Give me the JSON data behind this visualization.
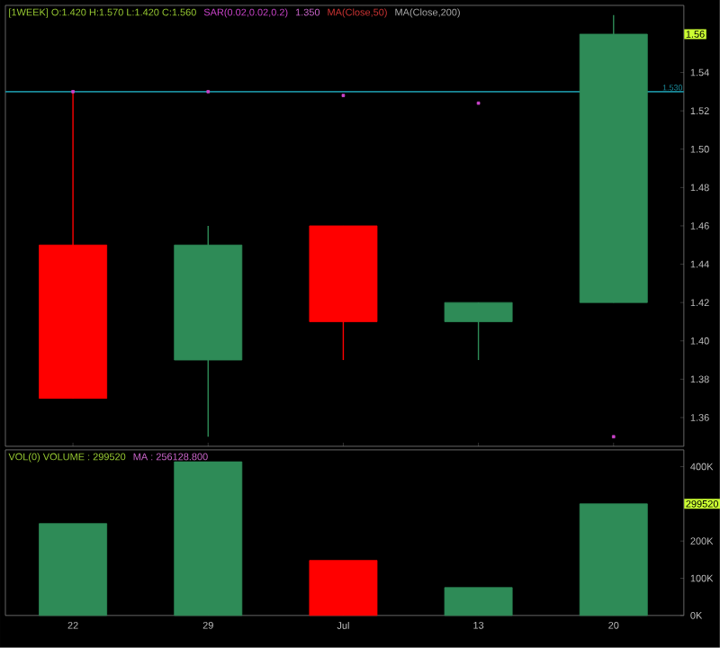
{
  "chart_data": [
    {
      "type": "candlestick",
      "title": "[1WEEK] O:1.420 H:1.570 L:1.420 C:1.560",
      "categories": [
        null,
        null,
        null,
        null,
        null
      ],
      "ohlc": [
        [
          1.45,
          1.53,
          1.37,
          1.37
        ],
        [
          1.39,
          1.46,
          1.35,
          1.45
        ],
        [
          1.46,
          1.46,
          1.39,
          1.41
        ],
        [
          1.41,
          1.42,
          1.39,
          1.42
        ],
        [
          1.42,
          1.57,
          1.42,
          1.56
        ]
      ],
      "colors": [
        "#ff0000",
        "#2e8b57",
        "#ff0000",
        "#2e8b57",
        "#2e8b57"
      ],
      "series": [
        {
          "type": "scatter",
          "name": "SAR(0.02,0.02,0.2)",
          "color": "#cc44cc",
          "marker": "square",
          "values": [
            1.53,
            1.53,
            1.528,
            1.524,
            1.35
          ]
        }
      ],
      "ref_lines": [
        {
          "axis": "y",
          "value": 1.53,
          "label": "1.530",
          "color": "#1a8a9a"
        }
      ],
      "annotations": [
        "1.350",
        "MA(Close,50)",
        "MA(Close,200)",
        "1.56"
      ],
      "ylim": [
        1.345,
        1.575
      ],
      "yticks": [
        {
          "value": 1.36,
          "label": "1.36"
        },
        {
          "value": 1.38,
          "label": "1.38"
        },
        {
          "value": 1.4,
          "label": "1.40"
        },
        {
          "value": 1.42,
          "label": "1.42"
        },
        {
          "value": 1.44,
          "label": "1.44"
        },
        {
          "value": 1.46,
          "label": "1.46"
        },
        {
          "value": 1.48,
          "label": "1.48"
        },
        {
          "value": 1.5,
          "label": "1.50"
        },
        {
          "value": 1.52,
          "label": "1.52"
        },
        {
          "value": 1.54,
          "label": "1.54"
        }
      ],
      "tick_labels": "y"
    },
    {
      "type": "bar",
      "title": "VOL(0) VOLUME : 299520",
      "categories": [
        "22",
        "29",
        "Jul",
        "13",
        "20"
      ],
      "values": [
        247,
        413,
        148,
        75,
        300
      ],
      "colors": [
        "#2e8b57",
        "#2e8b57",
        "#ff0000",
        "#2e8b57",
        "#2e8b57"
      ],
      "annotations": [
        "MA : 256128.800",
        "299520"
      ],
      "ylim": [
        0,
        445
      ],
      "yticks": [
        {
          "value": 0,
          "label": "0K"
        },
        {
          "value": 100,
          "label": "100K"
        },
        {
          "value": 200,
          "label": "200K"
        },
        {
          "value": 400,
          "label": "400K"
        }
      ]
    }
  ]
}
